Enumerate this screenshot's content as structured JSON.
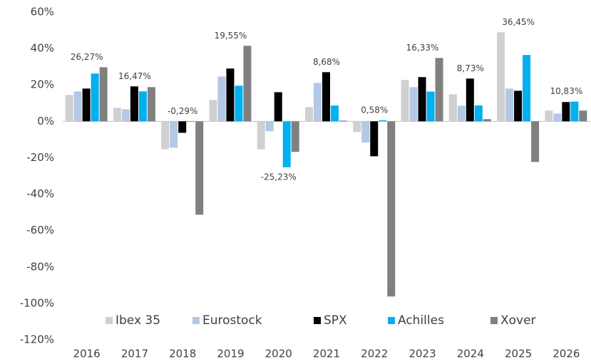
{
  "chart_data": {
    "type": "bar",
    "categories": [
      "2016",
      "2017",
      "2018",
      "2019",
      "2020",
      "2021",
      "2022",
      "2023",
      "2024",
      "2025",
      "2026"
    ],
    "series": [
      {
        "name": "Ibex 35",
        "color": "#d0d0d0",
        "values": [
          14.5,
          7.4,
          -15.3,
          11.7,
          -15.3,
          7.8,
          -5.9,
          22.7,
          14.9,
          48.9,
          5.9
        ]
      },
      {
        "name": "Eurostock",
        "color": "#b4c7e7",
        "values": [
          16.4,
          6.6,
          -14.5,
          24.6,
          -5.5,
          21.1,
          -11.7,
          18.8,
          8.6,
          18,
          4.3
        ]
      },
      {
        "name": "SPX",
        "color": "#000000",
        "values": [
          18,
          19.2,
          -6.3,
          29,
          16,
          27,
          -19.2,
          24.3,
          23.5,
          16.8,
          10.6
        ]
      },
      {
        "name": "Achilles",
        "color": "#00b0f0",
        "values": [
          26.27,
          16.47,
          -0.29,
          19.55,
          -25.23,
          8.68,
          0.58,
          16.33,
          8.73,
          36.45,
          10.83
        ],
        "value_labels": [
          "26,27%",
          "16,47%",
          "-0,29%",
          "19,55%",
          "-25,23%",
          "8,68%",
          "0,58%",
          "16,33%",
          "8,73%",
          "36,45%",
          "10,83%"
        ]
      },
      {
        "name": "Xover",
        "color": "#808080",
        "values": [
          29.7,
          18.8,
          -51.3,
          41.5,
          -16.8,
          0.4,
          -96.2,
          34.8,
          1.2,
          -22.3,
          5.9
        ]
      }
    ],
    "ylim": [
      -120,
      60
    ],
    "yticks": [
      {
        "value": -120,
        "label": "-120%"
      },
      {
        "value": -100,
        "label": "-100%"
      },
      {
        "value": -80,
        "label": "-80%"
      },
      {
        "value": -60,
        "label": "-60%"
      },
      {
        "value": -40,
        "label": "-40%"
      },
      {
        "value": -20,
        "label": "-20%"
      },
      {
        "value": 0,
        "label": "0%"
      },
      {
        "value": 20,
        "label": "20%"
      },
      {
        "value": 40,
        "label": "40%"
      },
      {
        "value": 60,
        "label": "60%"
      }
    ],
    "legend": "bottom-inside"
  }
}
